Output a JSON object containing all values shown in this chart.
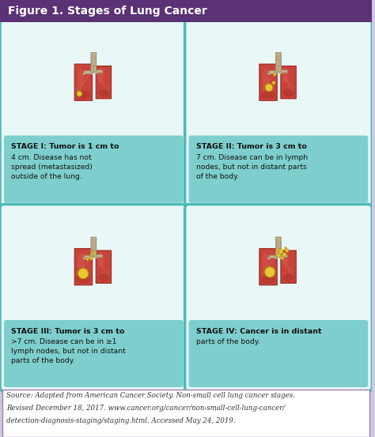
{
  "title": "Figure 1. Stages of Lung Cancer",
  "title_bg": "#5b3275",
  "title_color": "#ffffff",
  "outer_bg": "#cfc8e0",
  "panel_bg": "#eaf7f7",
  "panel_border": "#4ababa",
  "text_area_bg": "#7ecece",
  "source_bg": "#ffffff",
  "source_border": "#9b7fb6",
  "source_text_line1": "Source: Adapted from American Cancer Society. Non-small cell lung cancer stages.",
  "source_text_line2": "Revised December 18, 2017. www.cancer.org/cancer/non-small-cell-lung-cancer/",
  "source_text_line3": "detection-diagnosis-staging/staging.html. Accessed May 24, 2019.",
  "stages": [
    {
      "label_bold": "STAGE I: Tumor is 1 cm to",
      "label_rest": "4 cm. Disease has not\nspread (metastasized)\noutside of the lung.",
      "tumor_size": "small"
    },
    {
      "label_bold": "STAGE II: Tumor is 3 cm to",
      "label_rest": "7 cm. Disease can be in lymph\nnodes, but not in distant parts\nof the body.",
      "tumor_size": "medium"
    },
    {
      "label_bold": "STAGE III: Tumor is 3 cm to",
      "label_rest": ">7 cm. Disease can be in ≥1\nlymph nodes, but not in distant\nparts of the body.",
      "tumor_size": "large"
    },
    {
      "label_bold": "STAGE IV: Cancer is in distant",
      "label_rest": "parts of the body.",
      "tumor_size": "spread"
    }
  ],
  "lung_color": "#c8433a",
  "lung_light": "#d96050",
  "lung_vein": "#e07878",
  "lung_dark": "#9a2820",
  "trachea_color": "#c8b898",
  "trachea_dark": "#a09070",
  "tumor_color": "#e8c830",
  "tumor_dark": "#b89010",
  "text_color": "#111111"
}
